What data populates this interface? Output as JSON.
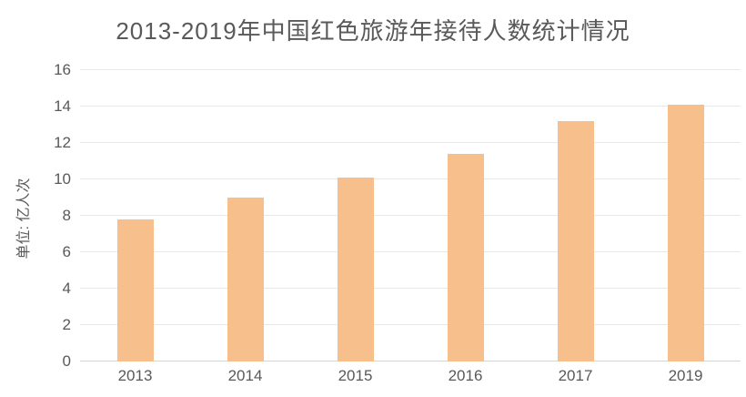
{
  "colors": {
    "bar": "#F6BF8B",
    "grid": "#E8E8E8",
    "axis_line": "#D4D4D4",
    "text": "#595959",
    "background": "#FFFFFF"
  },
  "chart_data": {
    "type": "bar",
    "title": "2013-2019年中国红色旅游年接待人数统计情况",
    "categories": [
      "2013",
      "2014",
      "2015",
      "2016",
      "2017",
      "2019"
    ],
    "values": [
      7.8,
      9.0,
      10.1,
      11.4,
      13.2,
      14.1
    ],
    "xlabel": "",
    "ylabel": "单位: 亿人次",
    "ylim": [
      0,
      16
    ],
    "yticks": [
      0,
      2,
      4,
      6,
      8,
      10,
      12,
      14,
      16
    ],
    "grid": true,
    "legend_position": "none"
  }
}
